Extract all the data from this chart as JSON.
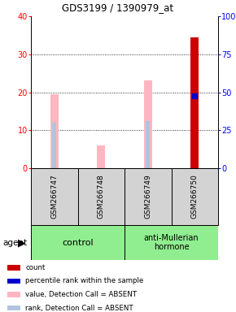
{
  "title": "GDS3199 / 1390979_at",
  "samples": [
    "GSM266747",
    "GSM266748",
    "GSM266749",
    "GSM266750"
  ],
  "ylim_left": [
    0,
    40
  ],
  "ylim_right": [
    0,
    100
  ],
  "yticks_left": [
    0,
    10,
    20,
    30,
    40
  ],
  "yticks_right": [
    0,
    25,
    50,
    75,
    100
  ],
  "pink_bar_values": [
    19.5,
    5.9,
    23.0,
    0
  ],
  "blue_bar_values": [
    12.0,
    0,
    12.5,
    0
  ],
  "red_bar_values": [
    0,
    0,
    0,
    34.5
  ],
  "blue_dot_pct": [
    0,
    0,
    0,
    47.5
  ],
  "pink_bar_width": 0.18,
  "blue_bar_width": 0.08,
  "red_bar_width": 0.18,
  "legend_items": [
    {
      "label": "count",
      "color": "#cc0000"
    },
    {
      "label": "percentile rank within the sample",
      "color": "#0000cc"
    },
    {
      "label": "value, Detection Call = ABSENT",
      "color": "#ffb6c1"
    },
    {
      "label": "rank, Detection Call = ABSENT",
      "color": "#b0c4de"
    }
  ],
  "bg_color": "#ffffff",
  "plot_bg": "#ffffff",
  "sample_bg": "#d3d3d3",
  "control_color": "#90ee90",
  "treatment_color": "#90ee90"
}
